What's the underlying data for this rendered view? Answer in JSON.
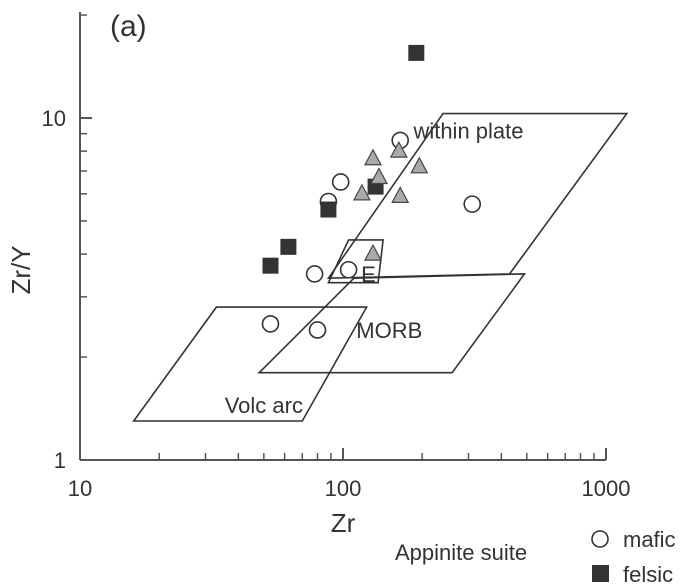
{
  "chart_data": {
    "type": "scatter",
    "panel_label": "(a)",
    "xlabel": "Zr",
    "ylabel": "Zr/Y",
    "x_scale": "log",
    "y_scale": "log",
    "xlim": [
      10,
      1000
    ],
    "ylim": [
      1,
      20
    ],
    "x_ticks": [
      {
        "value": 10,
        "label": "10"
      },
      {
        "value": 100,
        "label": "100"
      },
      {
        "value": 1000,
        "label": "1000"
      }
    ],
    "y_ticks": [
      {
        "value": 1,
        "label": "1"
      },
      {
        "value": 10,
        "label": "10"
      }
    ],
    "fields": [
      {
        "name": "within plate",
        "label_at": [
          300,
          9.2
        ],
        "polygon": [
          [
            88,
            3.4
          ],
          [
            240,
            10.3
          ],
          [
            1200,
            10.3
          ],
          [
            430,
            3.5
          ]
        ]
      },
      {
        "name": "MORB",
        "label_at": [
          150,
          2.4
        ],
        "polygon": [
          [
            48,
            1.8
          ],
          [
            110,
            3.4
          ],
          [
            490,
            3.5
          ],
          [
            260,
            1.8
          ]
        ]
      },
      {
        "name": "E",
        "label_at": [
          125,
          3.5
        ],
        "polygon": [
          [
            88,
            3.3
          ],
          [
            105,
            4.4
          ],
          [
            142,
            4.4
          ],
          [
            136,
            3.3
          ]
        ]
      },
      {
        "name": "Volc arc",
        "label_at": [
          50,
          1.45
        ],
        "polygon": [
          [
            16,
            1.3
          ],
          [
            33,
            2.8
          ],
          [
            123,
            2.8
          ],
          [
            70,
            1.3
          ]
        ]
      }
    ],
    "series": [
      {
        "name": "mafic",
        "marker": "open-circle",
        "color": "#ffffff",
        "points": [
          [
            53,
            2.5
          ],
          [
            80,
            2.4
          ],
          [
            78,
            3.5
          ],
          [
            88,
            5.7
          ],
          [
            98,
            6.5
          ],
          [
            105,
            3.6
          ],
          [
            165,
            8.6
          ],
          [
            310,
            5.6
          ]
        ]
      },
      {
        "name": "felsic",
        "marker": "filled-square",
        "color": "#333333",
        "points": [
          [
            53,
            3.7
          ],
          [
            62,
            4.2
          ],
          [
            88,
            5.4
          ],
          [
            133,
            6.3
          ],
          [
            190,
            15.5
          ]
        ]
      },
      {
        "name": "",
        "marker": "filled-triangle",
        "color": "#aaaaaa",
        "points": [
          [
            118,
            6.0
          ],
          [
            130,
            7.6
          ],
          [
            137,
            6.7
          ],
          [
            163,
            8.0
          ],
          [
            165,
            5.9
          ],
          [
            195,
            7.2
          ],
          [
            130,
            4.0
          ]
        ]
      }
    ],
    "legend": {
      "placement": "bottom-right",
      "group_label": "Appinite suite",
      "entries": [
        {
          "name": "mafic",
          "marker": "open-circle"
        },
        {
          "name": "felsic",
          "marker": "filled-square"
        }
      ]
    }
  }
}
